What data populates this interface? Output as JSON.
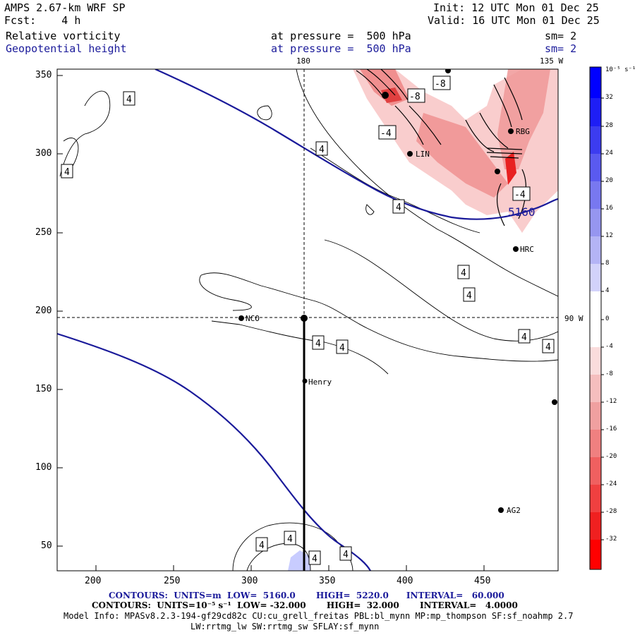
{
  "header": {
    "model": "AMPS 2.67-km WRF SP",
    "fcst": "Fcst:    4 h",
    "init": "Init: 12 UTC Mon 01 Dec 25",
    "valid": "Valid: 16 UTC Mon 01 Dec 25",
    "field1": "Relative vorticity",
    "field2": "Geopotential height",
    "pressure1": "at pressure =  500 hPa",
    "pressure2": "at pressure =  500 hPa",
    "sm1": "sm= 2",
    "sm2": "sm= 2"
  },
  "map": {
    "top_label_180": "180",
    "top_label_135w": "135 W",
    "right_label_90w": "90 W",
    "x_ticks": [
      "200",
      "250",
      "300",
      "350",
      "400",
      "450"
    ],
    "y_ticks": [
      "350",
      "300",
      "250",
      "200",
      "150",
      "100",
      "50"
    ],
    "stations": [
      {
        "name": "NCO"
      },
      {
        "name": "Henry"
      },
      {
        "name": "AG2"
      },
      {
        "name": "HRC"
      },
      {
        "name": "LIN"
      },
      {
        "name": "RBG"
      }
    ],
    "contour_labels": {
      "height": "5160",
      "pos4": "4",
      "neg4": "-4",
      "neg8": "-8"
    },
    "colors": {
      "height_contour": "#1a1a9a",
      "vorticity_contour": "#000000",
      "negative_fill": "#f08080",
      "positive_fill": "#a0a8ff"
    }
  },
  "colorbar": {
    "unit": "10⁻⁵ s⁻¹",
    "labels": [
      "32",
      "28",
      "24",
      "20",
      "16",
      "12",
      "8",
      "4",
      "0",
      "-4",
      "-8",
      "-12",
      "-16",
      "-20",
      "-24",
      "-28",
      "-32"
    ],
    "colors": [
      "#0000ff",
      "#1e1ef5",
      "#3c3cf0",
      "#5a5af0",
      "#7878f0",
      "#9696f0",
      "#b4b4f5",
      "#d2d2fa",
      "#ffffff",
      "#ffffff",
      "#fadcdc",
      "#f5bebe",
      "#f0a0a0",
      "#f08080",
      "#f06060",
      "#f04040",
      "#f02020",
      "#ff0000"
    ]
  },
  "footer": {
    "contours1": "CONTOURS:  UNITS=m  LOW=  5160.0       HIGH=  5220.0      INTERVAL=   60.000",
    "contours2": "CONTOURS:  UNITS=10⁻⁵ s⁻¹  LOW= -32.000       HIGH=  32.000       INTERVAL=   4.0000",
    "model_info": "Model Info: MPASv8.2.3-194-gf29cd82c CU:cu_grell_freitas PBL:bl_mynn MP:mp_thompson SF:sf_noahmp 2.7",
    "model_info2": "LW:rrtmg_lw SW:rrtmg_sw SFLAY:sf_mynn"
  }
}
